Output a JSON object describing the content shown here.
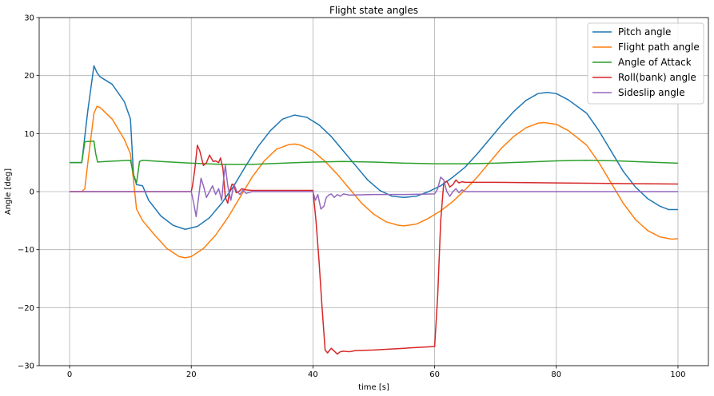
{
  "chart_data": {
    "type": "line",
    "title": "Flight state angles",
    "xlabel": "time [s]",
    "ylabel": "Angle [deg]",
    "xlim": [
      -5,
      105
    ],
    "ylim": [
      -30,
      30
    ],
    "xticks": [
      0,
      20,
      40,
      60,
      80,
      100
    ],
    "xtick_labels": [
      "0",
      "20",
      "40",
      "60",
      "80",
      "100"
    ],
    "yticks": [
      -30,
      -20,
      -10,
      0,
      10,
      20,
      30
    ],
    "ytick_labels": [
      "−30",
      "−20",
      "−10",
      "0",
      "10",
      "20",
      "30"
    ],
    "grid": true,
    "legend_position": "top-right",
    "series": [
      {
        "name": "Pitch angle",
        "color": "#1f77b4",
        "points": [
          [
            0,
            5
          ],
          [
            2,
            5
          ],
          [
            3,
            14
          ],
          [
            4,
            21.7
          ],
          [
            4.5,
            20.5
          ],
          [
            5,
            19.8
          ],
          [
            7,
            18.5
          ],
          [
            9,
            15.5
          ],
          [
            10,
            12.5
          ],
          [
            10.5,
            3
          ],
          [
            11,
            1.2
          ],
          [
            12,
            1
          ],
          [
            13,
            -1.5
          ],
          [
            15,
            -4.2
          ],
          [
            17,
            -5.8
          ],
          [
            19,
            -6.5
          ],
          [
            21,
            -6
          ],
          [
            23,
            -4.5
          ],
          [
            25,
            -2
          ],
          [
            27,
            1
          ],
          [
            29,
            4.5
          ],
          [
            31,
            7.8
          ],
          [
            33,
            10.5
          ],
          [
            35,
            12.5
          ],
          [
            37,
            13.2
          ],
          [
            39,
            12.8
          ],
          [
            41,
            11.5
          ],
          [
            43,
            9.5
          ],
          [
            45,
            7
          ],
          [
            47,
            4.5
          ],
          [
            49,
            2
          ],
          [
            51,
            0.2
          ],
          [
            53,
            -0.8
          ],
          [
            55,
            -1
          ],
          [
            57,
            -0.8
          ],
          [
            59,
            0
          ],
          [
            61,
            1
          ],
          [
            63,
            2.5
          ],
          [
            65,
            4.2
          ],
          [
            67,
            6.5
          ],
          [
            69,
            9
          ],
          [
            71,
            11.5
          ],
          [
            73,
            13.8
          ],
          [
            75,
            15.7
          ],
          [
            77,
            16.9
          ],
          [
            78.5,
            17.1
          ],
          [
            80,
            16.9
          ],
          [
            82,
            15.8
          ],
          [
            85,
            13.5
          ],
          [
            87,
            10.5
          ],
          [
            89,
            7
          ],
          [
            91,
            3.5
          ],
          [
            93,
            0.8
          ],
          [
            95,
            -1.2
          ],
          [
            97,
            -2.5
          ],
          [
            98.5,
            -3.1
          ],
          [
            100,
            -3.1
          ]
        ]
      },
      {
        "name": "Flight path angle",
        "color": "#ff7f0e",
        "points": [
          [
            0,
            0
          ],
          [
            2,
            0
          ],
          [
            2.5,
            0.5
          ],
          [
            3,
            5
          ],
          [
            4,
            13.5
          ],
          [
            4.5,
            14.7
          ],
          [
            5,
            14.5
          ],
          [
            7,
            12.5
          ],
          [
            9,
            9
          ],
          [
            10,
            6.5
          ],
          [
            10.5,
            2
          ],
          [
            11,
            -3
          ],
          [
            12,
            -5
          ],
          [
            14,
            -7.5
          ],
          [
            16,
            -9.8
          ],
          [
            18,
            -11.2
          ],
          [
            19,
            -11.4
          ],
          [
            20,
            -11.2
          ],
          [
            22,
            -9.8
          ],
          [
            24,
            -7.5
          ],
          [
            26,
            -4.5
          ],
          [
            28,
            -1
          ],
          [
            30,
            2.5
          ],
          [
            32,
            5.3
          ],
          [
            34,
            7.3
          ],
          [
            36,
            8.1
          ],
          [
            37,
            8.2
          ],
          [
            38,
            8
          ],
          [
            40,
            7
          ],
          [
            42,
            5.2
          ],
          [
            44,
            3
          ],
          [
            46,
            0.5
          ],
          [
            48,
            -2
          ],
          [
            50,
            -3.9
          ],
          [
            52,
            -5.2
          ],
          [
            54,
            -5.8
          ],
          [
            55,
            -5.9
          ],
          [
            57,
            -5.6
          ],
          [
            59,
            -4.6
          ],
          [
            61,
            -3.3
          ],
          [
            63,
            -1.7
          ],
          [
            65,
            0.3
          ],
          [
            67,
            2.5
          ],
          [
            69,
            5
          ],
          [
            71,
            7.5
          ],
          [
            73,
            9.5
          ],
          [
            75,
            11
          ],
          [
            77,
            11.8
          ],
          [
            78,
            11.9
          ],
          [
            80,
            11.6
          ],
          [
            82,
            10.5
          ],
          [
            85,
            8
          ],
          [
            87,
            5
          ],
          [
            89,
            1.5
          ],
          [
            91,
            -2
          ],
          [
            93,
            -4.8
          ],
          [
            95,
            -6.7
          ],
          [
            97,
            -7.8
          ],
          [
            99,
            -8.2
          ],
          [
            100,
            -8.1
          ]
        ]
      },
      {
        "name": "Angle of Attack",
        "color": "#2ca02c",
        "points": [
          [
            0,
            5
          ],
          [
            2,
            5
          ],
          [
            2.5,
            8.6
          ],
          [
            4,
            8.7
          ],
          [
            4.3,
            6.5
          ],
          [
            4.6,
            5.1
          ],
          [
            6,
            5.2
          ],
          [
            8,
            5.3
          ],
          [
            10,
            5.4
          ],
          [
            10.5,
            3
          ],
          [
            11,
            1.5
          ],
          [
            11.5,
            5.2
          ],
          [
            12,
            5.4
          ],
          [
            15,
            5.2
          ],
          [
            20,
            4.9
          ],
          [
            25,
            4.7
          ],
          [
            30,
            4.7
          ],
          [
            35,
            4.9
          ],
          [
            40,
            5.1
          ],
          [
            45,
            5.2
          ],
          [
            50,
            5.1
          ],
          [
            55,
            4.9
          ],
          [
            60,
            4.8
          ],
          [
            65,
            4.8
          ],
          [
            70,
            4.9
          ],
          [
            75,
            5.1
          ],
          [
            80,
            5.3
          ],
          [
            85,
            5.4
          ],
          [
            90,
            5.3
          ],
          [
            95,
            5.1
          ],
          [
            100,
            4.9
          ]
        ]
      },
      {
        "name": "Roll(bank) angle",
        "color": "#d62728",
        "points": [
          [
            0,
            0
          ],
          [
            20,
            0
          ],
          [
            20.2,
            1
          ],
          [
            20.6,
            4
          ],
          [
            21,
            8
          ],
          [
            21.4,
            7
          ],
          [
            22,
            4.5
          ],
          [
            22.5,
            5
          ],
          [
            23,
            6.3
          ],
          [
            23.6,
            5.2
          ],
          [
            24,
            5.3
          ],
          [
            24.5,
            5
          ],
          [
            24.8,
            5.8
          ],
          [
            25.2,
            4
          ],
          [
            25.6,
            -1
          ],
          [
            26,
            -2
          ],
          [
            26.3,
            0
          ],
          [
            26.7,
            1.3
          ],
          [
            27,
            1
          ],
          [
            27.4,
            -0.2
          ],
          [
            27.8,
            0
          ],
          [
            28.3,
            0.5
          ],
          [
            29,
            0.3
          ],
          [
            30,
            0.2
          ],
          [
            35,
            0.2
          ],
          [
            40,
            0.2
          ],
          [
            40.5,
            -5
          ],
          [
            41,
            -12
          ],
          [
            41.5,
            -20
          ],
          [
            42,
            -27.3
          ],
          [
            42.4,
            -27.8
          ],
          [
            43,
            -27
          ],
          [
            43.5,
            -27.5
          ],
          [
            44,
            -28
          ],
          [
            44.5,
            -27.6
          ],
          [
            45,
            -27.5
          ],
          [
            46,
            -27.6
          ],
          [
            47,
            -27.4
          ],
          [
            50,
            -27.3
          ],
          [
            55,
            -27
          ],
          [
            60,
            -26.7
          ],
          [
            60.5,
            -18
          ],
          [
            61,
            -5
          ],
          [
            61.5,
            1.5
          ],
          [
            62,
            1.8
          ],
          [
            62.5,
            0.8
          ],
          [
            63,
            1.2
          ],
          [
            63.5,
            2
          ],
          [
            64,
            1.5
          ],
          [
            64.5,
            1.7
          ],
          [
            65,
            1.6
          ],
          [
            70,
            1.6
          ],
          [
            80,
            1.5
          ],
          [
            90,
            1.4
          ],
          [
            100,
            1.3
          ]
        ]
      },
      {
        "name": "Sideslip angle",
        "color": "#9467bd",
        "points": [
          [
            0,
            0
          ],
          [
            20,
            0
          ],
          [
            20.4,
            -2
          ],
          [
            20.8,
            -4.3
          ],
          [
            21.2,
            -1
          ],
          [
            21.6,
            2.3
          ],
          [
            22,
            1
          ],
          [
            22.5,
            -1
          ],
          [
            23,
            0
          ],
          [
            23.5,
            1
          ],
          [
            24,
            -0.5
          ],
          [
            24.5,
            0.5
          ],
          [
            25,
            -1.5
          ],
          [
            25.3,
            2
          ],
          [
            25.6,
            4.5
          ],
          [
            26,
            1
          ],
          [
            26.5,
            -1.5
          ],
          [
            27,
            1.3
          ],
          [
            27.5,
            0
          ],
          [
            28,
            -0.5
          ],
          [
            28.5,
            0.3
          ],
          [
            29,
            -0.3
          ],
          [
            30,
            0
          ],
          [
            40,
            0
          ],
          [
            40.4,
            -1.5
          ],
          [
            40.8,
            -0.5
          ],
          [
            41.3,
            -3
          ],
          [
            41.8,
            -2.5
          ],
          [
            42.2,
            -1
          ],
          [
            42.6,
            -0.6
          ],
          [
            43,
            -0.4
          ],
          [
            43.5,
            -1
          ],
          [
            44,
            -0.5
          ],
          [
            44.5,
            -0.8
          ],
          [
            45,
            -0.4
          ],
          [
            46,
            -0.6
          ],
          [
            50,
            -0.5
          ],
          [
            55,
            -0.5
          ],
          [
            60,
            -0.4
          ],
          [
            60.5,
            0.5
          ],
          [
            61,
            2.5
          ],
          [
            61.5,
            2
          ],
          [
            62,
            0
          ],
          [
            62.5,
            -0.8
          ],
          [
            63,
            0
          ],
          [
            63.5,
            0.5
          ],
          [
            64,
            -0.2
          ],
          [
            64.5,
            0.3
          ],
          [
            65,
            0
          ],
          [
            70,
            0
          ],
          [
            80,
            0
          ],
          [
            90,
            0
          ],
          [
            100,
            0
          ]
        ]
      }
    ]
  }
}
